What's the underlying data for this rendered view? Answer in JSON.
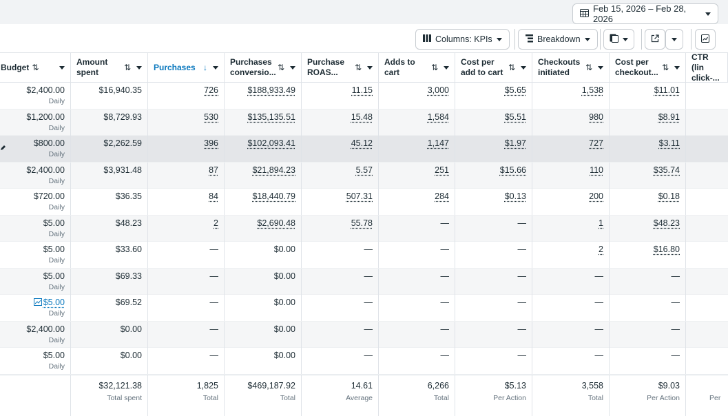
{
  "date_range": "Feb 15, 2026 – Feb 28, 2026",
  "toolbar": {
    "columns_label": "Columns: KPIs",
    "breakdown_label": "Breakdown"
  },
  "columns": [
    {
      "label": "Budget",
      "sort": "⇅",
      "active": false
    },
    {
      "label": "Amount\nspent",
      "sort": "⇅",
      "active": false
    },
    {
      "label": "Purchases",
      "sort": "↓",
      "active": true
    },
    {
      "label": "Purchases\nconversio...",
      "sort": "⇅",
      "active": false
    },
    {
      "label": "Purchase\nROAS...",
      "sort": "⇅",
      "active": false
    },
    {
      "label": "Adds to\ncart",
      "sort": "⇅",
      "active": false
    },
    {
      "label": "Cost per\nadd to cart",
      "sort": "⇅",
      "active": false
    },
    {
      "label": "Checkouts\ninitiated",
      "sort": "⇅",
      "active": false
    },
    {
      "label": "Cost per\ncheckout...",
      "sort": "⇅",
      "active": false
    },
    {
      "label": "CTR (lin\nclick-...",
      "sort": "",
      "active": false
    }
  ],
  "rows": [
    {
      "budget": "$2,400.00",
      "budget_sub": "Daily",
      "spent": "$16,940.35",
      "purchases": "726",
      "conv": "$188,933.49",
      "roas": "11.15",
      "atc": "3,000",
      "cpatc": "$5.65",
      "checkouts": "1,538",
      "cpc": "$11.01"
    },
    {
      "budget": "$1,200.00",
      "budget_sub": "Daily",
      "spent": "$8,729.93",
      "purchases": "530",
      "conv": "$135,135.51",
      "roas": "15.48",
      "atc": "1,584",
      "cpatc": "$5.51",
      "checkouts": "980",
      "cpc": "$8.91"
    },
    {
      "budget": "$800.00",
      "budget_sub": "Daily",
      "spent": "$2,262.59",
      "purchases": "396",
      "conv": "$102,093.41",
      "roas": "45.12",
      "atc": "1,147",
      "cpatc": "$1.97",
      "checkouts": "727",
      "cpc": "$3.11"
    },
    {
      "budget": "$2,400.00",
      "budget_sub": "Daily",
      "spent": "$3,931.48",
      "purchases": "87",
      "conv": "$21,894.23",
      "roas": "5.57",
      "atc": "251",
      "cpatc": "$15.66",
      "checkouts": "110",
      "cpc": "$35.74"
    },
    {
      "budget": "$720.00",
      "budget_sub": "Daily",
      "spent": "$36.35",
      "purchases": "84",
      "conv": "$18,440.79",
      "roas": "507.31",
      "atc": "284",
      "cpatc": "$0.13",
      "checkouts": "200",
      "cpc": "$0.18"
    },
    {
      "budget": "$5.00",
      "budget_sub": "Daily",
      "spent": "$48.23",
      "purchases": "2",
      "conv": "$2,690.48",
      "roas": "55.78",
      "atc": "—",
      "cpatc": "—",
      "checkouts": "1",
      "cpc": "$48.23"
    },
    {
      "budget": "$5.00",
      "budget_sub": "Daily",
      "spent": "$33.60",
      "purchases": "—",
      "conv": "$0.00",
      "roas": "—",
      "atc": "—",
      "cpatc": "—",
      "checkouts": "2",
      "cpc": "$16.80"
    },
    {
      "budget": "$5.00",
      "budget_sub": "Daily",
      "spent": "$69.33",
      "purchases": "—",
      "conv": "$0.00",
      "roas": "—",
      "atc": "—",
      "cpatc": "—",
      "checkouts": "—",
      "cpc": "—"
    },
    {
      "budget": "$5.00",
      "budget_sub": "Daily",
      "spent": "$69.52",
      "purchases": "—",
      "conv": "$0.00",
      "roas": "—",
      "atc": "—",
      "cpatc": "—",
      "checkouts": "—",
      "cpc": "—"
    },
    {
      "budget": "$2,400.00",
      "budget_sub": "Daily",
      "spent": "$0.00",
      "purchases": "—",
      "conv": "$0.00",
      "roas": "—",
      "atc": "—",
      "cpatc": "—",
      "checkouts": "—",
      "cpc": "—"
    },
    {
      "budget": "$5.00",
      "budget_sub": "Daily",
      "spent": "$0.00",
      "purchases": "—",
      "conv": "$0.00",
      "roas": "—",
      "atc": "—",
      "cpatc": "—",
      "checkouts": "—",
      "cpc": "—"
    }
  ],
  "totals": {
    "spent": "$32,121.38",
    "spent_sub": "Total spent",
    "purchases": "1,825",
    "purchases_sub": "Total",
    "conv": "$469,187.92",
    "conv_sub": "Total",
    "roas": "14.61",
    "roas_sub": "Average",
    "atc": "6,266",
    "atc_sub": "Total",
    "cpatc": "$5.13",
    "cpatc_sub": "Per Action",
    "checkouts": "3,558",
    "checkouts_sub": "Total",
    "cpc": "$9.03",
    "cpc_sub": "Per Action",
    "ctr_sub": "Per"
  },
  "colors": {
    "accent": "#0a78be",
    "selected_row": "#e4e6e9",
    "alt_row": "#f5f6f7"
  }
}
